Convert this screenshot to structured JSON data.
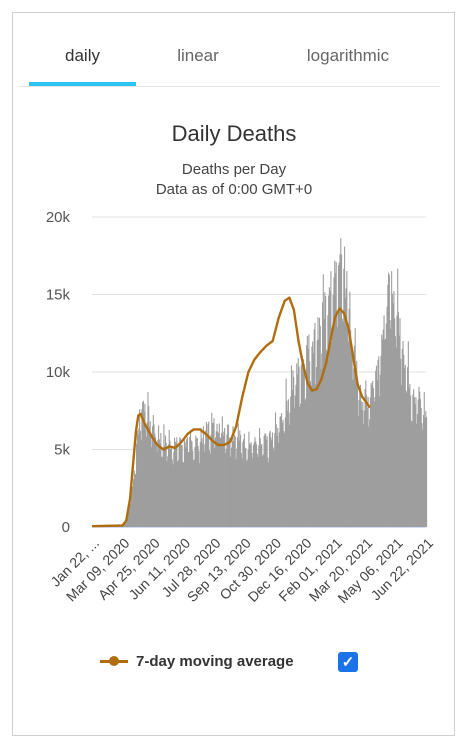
{
  "tabs": [
    {
      "label": "daily",
      "active": true
    },
    {
      "label": "linear",
      "active": false
    },
    {
      "label": "logarithmic",
      "active": false
    }
  ],
  "colors": {
    "bars": "#9e9e9e",
    "line": "#b06d0e",
    "accent": "#2ec4f1",
    "checkbox": "#1a73e8"
  },
  "legend": {
    "label": "7-day moving average",
    "checked": true,
    "checkbox_icon": "checkmark-icon"
  },
  "chart_data": {
    "type": "bar",
    "title": "Daily Deaths",
    "subtitle_lines": [
      "Deaths per Day",
      "Data as of 0:00 GMT+0"
    ],
    "ylim": [
      0,
      20000
    ],
    "y_ticks": [
      0,
      5000,
      10000,
      15000,
      20000
    ],
    "y_tick_labels": [
      "0",
      "5k",
      "10k",
      "15k",
      "20k"
    ],
    "x_tick_labels": [
      "Jan 22, ...",
      "Mar 09, 2020",
      "Apr 25, 2020",
      "Jun 11, 2020",
      "Jul 28, 2020",
      "Sep 13, 2020",
      "Oct 30, 2020",
      "Dec 16, 2020",
      "Feb 01, 2021",
      "Mar 20, 2021",
      "May 06, 2021",
      "Jun 22, 2021"
    ],
    "x_tick_days": [
      0,
      47,
      94,
      141,
      188,
      235,
      282,
      329,
      376,
      423,
      470,
      517
    ],
    "grid": true,
    "legend_position": "bottom",
    "daily_anchors": [
      [
        0,
        50
      ],
      [
        30,
        80
      ],
      [
        42,
        200
      ],
      [
        50,
        1500
      ],
      [
        58,
        5000
      ],
      [
        62,
        7200
      ],
      [
        68,
        8000
      ],
      [
        75,
        7000
      ],
      [
        85,
        6000
      ],
      [
        95,
        5500
      ],
      [
        110,
        5300
      ],
      [
        125,
        5400
      ],
      [
        140,
        5500
      ],
      [
        150,
        6200
      ],
      [
        165,
        6700
      ],
      [
        180,
        6200
      ],
      [
        195,
        5700
      ],
      [
        210,
        5400
      ],
      [
        220,
        5300
      ],
      [
        235,
        5600
      ],
      [
        250,
        7200
      ],
      [
        265,
        9500
      ],
      [
        280,
        11000
      ],
      [
        290,
        12000
      ],
      [
        300,
        13000
      ],
      [
        310,
        14500
      ],
      [
        320,
        16000
      ],
      [
        328,
        17200
      ],
      [
        335,
        15500
      ],
      [
        340,
        13000
      ],
      [
        348,
        10000
      ],
      [
        355,
        8300
      ],
      [
        365,
        8500
      ],
      [
        375,
        10500
      ],
      [
        385,
        13500
      ],
      [
        392,
        15500
      ],
      [
        400,
        14500
      ],
      [
        410,
        11500
      ],
      [
        420,
        9000
      ],
      [
        430,
        8200
      ],
      [
        440,
        7200
      ]
    ],
    "series_line": {
      "name": "7-day moving average",
      "points": [
        [
          0,
          50
        ],
        [
          40,
          100
        ],
        [
          45,
          400
        ],
        [
          50,
          1800
        ],
        [
          54,
          4000
        ],
        [
          58,
          6200
        ],
        [
          61,
          7200
        ],
        [
          64,
          7300
        ],
        [
          70,
          6600
        ],
        [
          78,
          5900
        ],
        [
          86,
          5300
        ],
        [
          94,
          5000
        ],
        [
          102,
          5200
        ],
        [
          110,
          5100
        ],
        [
          118,
          5500
        ],
        [
          126,
          6000
        ],
        [
          134,
          6300
        ],
        [
          142,
          6300
        ],
        [
          150,
          6000
        ],
        [
          158,
          5600
        ],
        [
          166,
          5300
        ],
        [
          174,
          5300
        ],
        [
          182,
          5500
        ],
        [
          190,
          6500
        ],
        [
          198,
          8400
        ],
        [
          206,
          10000
        ],
        [
          214,
          10800
        ],
        [
          222,
          11300
        ],
        [
          230,
          11700
        ],
        [
          238,
          12000
        ],
        [
          246,
          13500
        ],
        [
          254,
          14600
        ],
        [
          260,
          14800
        ],
        [
          266,
          14000
        ],
        [
          272,
          12000
        ],
        [
          278,
          10500
        ],
        [
          284,
          9300
        ],
        [
          290,
          8800
        ],
        [
          296,
          8900
        ],
        [
          302,
          9500
        ],
        [
          308,
          10500
        ],
        [
          314,
          12000
        ],
        [
          320,
          13500
        ],
        [
          326,
          14100
        ],
        [
          332,
          13800
        ],
        [
          338,
          12800
        ],
        [
          344,
          11000
        ],
        [
          350,
          9200
        ],
        [
          356,
          8400
        ],
        [
          362,
          8000
        ],
        [
          366,
          7700
        ]
      ]
    }
  }
}
